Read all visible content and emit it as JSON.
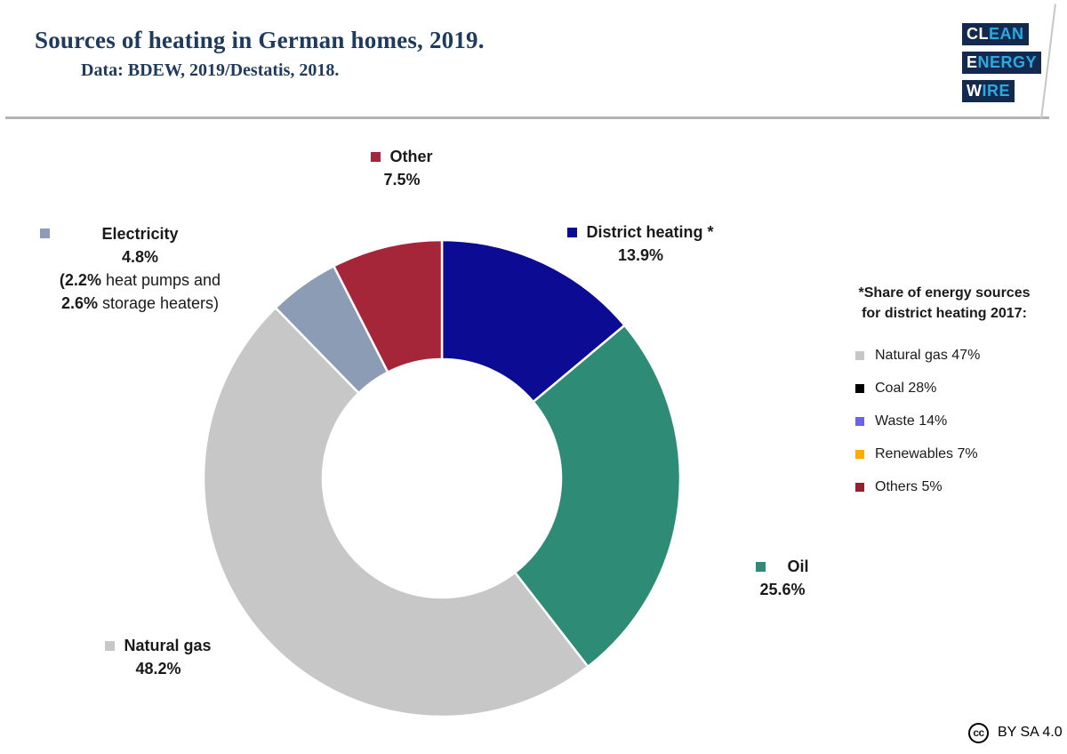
{
  "header": {
    "title": "Sources of heating in German homes, 2019.",
    "subtitle": "Data: BDEW, 2019/Destatis, 2018.",
    "logo_lines": [
      {
        "white": "CL",
        "cyan": "EAN"
      },
      {
        "white": "E",
        "cyan": "NERGY"
      },
      {
        "white": "W",
        "cyan": "IRE"
      }
    ]
  },
  "chart_data": [
    {
      "type": "pie",
      "subtype": "donut",
      "title": "Sources of heating in German homes, 2019",
      "start_angle_deg": 0,
      "direction": "clockwise",
      "inner_radius_ratio": 0.5,
      "series": [
        {
          "key": "district-heating",
          "label": "District heating *",
          "value": 13.9,
          "display": "13.9%",
          "color": "#0b0b93"
        },
        {
          "key": "oil",
          "label": "Oil",
          "value": 25.6,
          "display": "25.6%",
          "color": "#2e8c76"
        },
        {
          "key": "natural-gas",
          "label": "Natural gas",
          "value": 48.2,
          "display": "48.2%",
          "color": "#c7c7c7"
        },
        {
          "key": "electricity",
          "label": "Electricity",
          "value": 4.8,
          "display": "4.8%",
          "color": "#8c9cb4"
        },
        {
          "key": "other",
          "label": "Other",
          "value": 7.5,
          "display": "7.5%",
          "color": "#a62639"
        }
      ],
      "annotation": "Electricity: (2.2% heat pumps and 2.6% storage heaters)"
    },
    {
      "type": "table",
      "title": "*Share of energy sources for district heating 2017:",
      "categories": [
        "Natural gas",
        "Coal",
        "Waste",
        "Renewables",
        "Others"
      ],
      "values": [
        47,
        28,
        14,
        7,
        5
      ]
    }
  ],
  "callouts": {
    "electricity_note_bold1": "(2.2%",
    "electricity_note_rest1": " heat pumps and",
    "electricity_note_bold2": "2.6%",
    "electricity_note_rest2": " storage heaters)"
  },
  "side_legend": {
    "title_line1": "*Share of energy sources",
    "title_line2": "for district heating 2017:",
    "items": [
      {
        "label": "Natural gas 47%",
        "color": "#c7c7c7"
      },
      {
        "label": "Coal 28%",
        "color": "#000000"
      },
      {
        "label": "Waste 14%",
        "color": "#6c63e8"
      },
      {
        "label": "Renewables 7%",
        "color": "#ffac00"
      },
      {
        "label": "Others 5%",
        "color": "#97202f"
      }
    ]
  },
  "footer": {
    "cc_label": "cc",
    "license": "BY SA 4.0"
  }
}
